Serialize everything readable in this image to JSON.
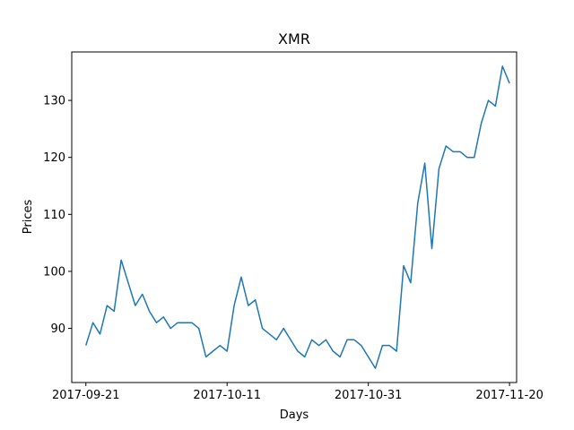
{
  "chart_data": {
    "type": "line",
    "title": "XMR",
    "xlabel": "Days",
    "ylabel": "Prices",
    "x_start": "2017-09-21",
    "xlim": [
      "2017-09-19",
      "2017-11-21"
    ],
    "ylim": [
      80.5,
      138.5
    ],
    "x_ticks": [
      "2017-09-21",
      "2017-10-11",
      "2017-10-31",
      "2017-11-20"
    ],
    "y_ticks": [
      90,
      100,
      110,
      120,
      130
    ],
    "grid": false,
    "line_color": "#1f77b4",
    "series": [
      {
        "name": "",
        "x": [
          "2017-09-21",
          "2017-09-22",
          "2017-09-23",
          "2017-09-24",
          "2017-09-25",
          "2017-09-26",
          "2017-09-27",
          "2017-09-28",
          "2017-09-29",
          "2017-09-30",
          "2017-10-01",
          "2017-10-02",
          "2017-10-03",
          "2017-10-04",
          "2017-10-05",
          "2017-10-06",
          "2017-10-07",
          "2017-10-08",
          "2017-10-09",
          "2017-10-10",
          "2017-10-11",
          "2017-10-12",
          "2017-10-13",
          "2017-10-14",
          "2017-10-15",
          "2017-10-16",
          "2017-10-17",
          "2017-10-18",
          "2017-10-19",
          "2017-10-20",
          "2017-10-21",
          "2017-10-22",
          "2017-10-23",
          "2017-10-24",
          "2017-10-25",
          "2017-10-26",
          "2017-10-27",
          "2017-10-28",
          "2017-10-29",
          "2017-10-30",
          "2017-10-31",
          "2017-11-01",
          "2017-11-02",
          "2017-11-03",
          "2017-11-04",
          "2017-11-05",
          "2017-11-06",
          "2017-11-07",
          "2017-11-08",
          "2017-11-09",
          "2017-11-10",
          "2017-11-11",
          "2017-11-12",
          "2017-11-13",
          "2017-11-14",
          "2017-11-15",
          "2017-11-16",
          "2017-11-17",
          "2017-11-18",
          "2017-11-19",
          "2017-11-20"
        ],
        "values": [
          87,
          91,
          89,
          94,
          93,
          102,
          98,
          94,
          96,
          93,
          91,
          92,
          90,
          91,
          91,
          91,
          90,
          85,
          86,
          87,
          86,
          94,
          99,
          94,
          95,
          90,
          89,
          88,
          90,
          88,
          86,
          85,
          88,
          87,
          88,
          86,
          85,
          88,
          88,
          87,
          85,
          83,
          87,
          87,
          86,
          101,
          98,
          112,
          119,
          104,
          118,
          122,
          121,
          121,
          120,
          120,
          126,
          130,
          129,
          136,
          133
        ]
      }
    ]
  }
}
